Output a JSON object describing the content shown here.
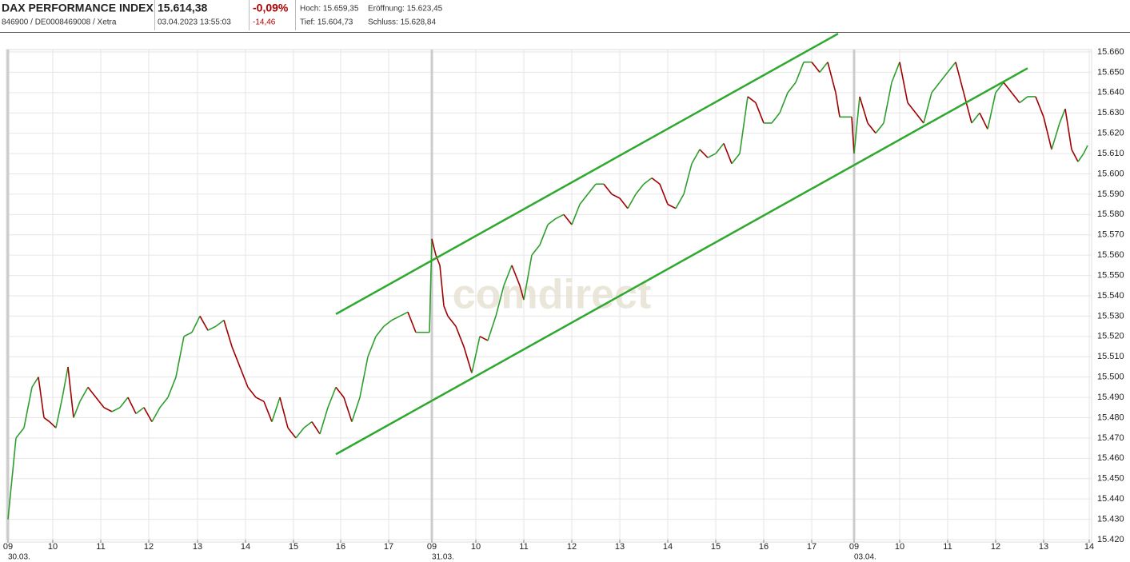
{
  "header": {
    "title": "DAX PERFORMANCE INDEX",
    "subtitle": "846900 / DE0008469008 / Xetra",
    "price": "15.614,38",
    "timestamp": "03.04.2023 13:55:03",
    "change_pct": "-0,09%",
    "change_abs": "-14,46",
    "high": "Hoch: 15.659,35",
    "open": "Eröffnung: 15.623,45",
    "low": "Tief: 15.604,73",
    "close": "Schluss: 15.628,84"
  },
  "chart_data": {
    "type": "line",
    "watermark": "comdirect",
    "up_color": "#2e9e2e",
    "down_color": "#a00000",
    "trend_color": "#2ea82e",
    "grid": true,
    "xlim": [
      -2,
      1355
    ],
    "ylim": [
      15420,
      15660
    ],
    "xticks": [
      {
        "value": 0,
        "label": "09"
      },
      {
        "value": 56,
        "label": "10"
      },
      {
        "value": 116,
        "label": "11"
      },
      {
        "value": 176,
        "label": "12"
      },
      {
        "value": 237,
        "label": "13"
      },
      {
        "value": 297,
        "label": "14"
      },
      {
        "value": 357,
        "label": "15"
      },
      {
        "value": 416,
        "label": "16"
      },
      {
        "value": 476,
        "label": "17"
      },
      {
        "value": 530,
        "label": "09"
      },
      {
        "value": 585,
        "label": "10"
      },
      {
        "value": 645,
        "label": "11"
      },
      {
        "value": 705,
        "label": "12"
      },
      {
        "value": 765,
        "label": "13"
      },
      {
        "value": 825,
        "label": "14"
      },
      {
        "value": 885,
        "label": "15"
      },
      {
        "value": 945,
        "label": "16"
      },
      {
        "value": 1005,
        "label": "17"
      },
      {
        "value": 1058,
        "label": "09"
      },
      {
        "value": 1115,
        "label": "10"
      },
      {
        "value": 1175,
        "label": "11"
      },
      {
        "value": 1235,
        "label": "12"
      },
      {
        "value": 1295,
        "label": "13"
      },
      {
        "value": 1352,
        "label": "14"
      }
    ],
    "day_labels": [
      {
        "value": 0,
        "label": "30.03."
      },
      {
        "value": 530,
        "label": "31.03."
      },
      {
        "value": 1058,
        "label": "03.04."
      }
    ],
    "yticks": [
      {
        "value": 15420,
        "label": "15.420"
      },
      {
        "value": 15430,
        "label": "15.430"
      },
      {
        "value": 15440,
        "label": "15.440"
      },
      {
        "value": 15450,
        "label": "15.450"
      },
      {
        "value": 15460,
        "label": "15.460"
      },
      {
        "value": 15470,
        "label": "15.470"
      },
      {
        "value": 15480,
        "label": "15.480"
      },
      {
        "value": 15490,
        "label": "15.490"
      },
      {
        "value": 15500,
        "label": "15.500"
      },
      {
        "value": 15510,
        "label": "15.510"
      },
      {
        "value": 15520,
        "label": "15.520"
      },
      {
        "value": 15530,
        "label": "15.530"
      },
      {
        "value": 15540,
        "label": "15.540"
      },
      {
        "value": 15550,
        "label": "15.550"
      },
      {
        "value": 15560,
        "label": "15.560"
      },
      {
        "value": 15570,
        "label": "15.570"
      },
      {
        "value": 15580,
        "label": "15.580"
      },
      {
        "value": 15590,
        "label": "15.590"
      },
      {
        "value": 15600,
        "label": "15.600"
      },
      {
        "value": 15610,
        "label": "15.610"
      },
      {
        "value": 15620,
        "label": "15.620"
      },
      {
        "value": 15630,
        "label": "15.630"
      },
      {
        "value": 15640,
        "label": "15.640"
      },
      {
        "value": 15650,
        "label": "15.650"
      },
      {
        "value": 15660,
        "label": "15.660"
      }
    ],
    "x": [
      0,
      5,
      10,
      20,
      30,
      38,
      45,
      52,
      60,
      68,
      75,
      82,
      90,
      100,
      110,
      120,
      130,
      140,
      150,
      160,
      170,
      180,
      190,
      200,
      210,
      220,
      230,
      240,
      250,
      260,
      270,
      280,
      290,
      300,
      310,
      320,
      330,
      340,
      350,
      360,
      370,
      380,
      390,
      400,
      410,
      420,
      430,
      440,
      450,
      460,
      470,
      480,
      490,
      500,
      510,
      527,
      530,
      535,
      540,
      545,
      550,
      560,
      570,
      580,
      590,
      600,
      610,
      620,
      630,
      640,
      645,
      655,
      665,
      675,
      685,
      695,
      705,
      715,
      725,
      735,
      745,
      755,
      765,
      775,
      785,
      795,
      805,
      815,
      825,
      835,
      845,
      855,
      865,
      875,
      885,
      895,
      905,
      915,
      925,
      935,
      945,
      955,
      965,
      975,
      985,
      995,
      1005,
      1015,
      1025,
      1035,
      1040,
      1055,
      1058,
      1065,
      1075,
      1085,
      1095,
      1105,
      1115,
      1125,
      1135,
      1145,
      1155,
      1165,
      1175,
      1185,
      1195,
      1205,
      1215,
      1225,
      1235,
      1245,
      1255,
      1265,
      1275,
      1285,
      1295,
      1305,
      1315,
      1322,
      1330,
      1338,
      1345,
      1350
    ],
    "series": [
      {
        "name": "DAX",
        "values": [
          15430,
          15450,
          15470,
          15475,
          15495,
          15500,
          15480,
          15478,
          15475,
          15490,
          15505,
          15480,
          15488,
          15495,
          15490,
          15485,
          15483,
          15485,
          15490,
          15482,
          15485,
          15478,
          15485,
          15490,
          15500,
          15520,
          15522,
          15530,
          15523,
          15525,
          15528,
          15515,
          15505,
          15495,
          15490,
          15488,
          15478,
          15490,
          15475,
          15470,
          15475,
          15478,
          15472,
          15485,
          15495,
          15490,
          15478,
          15490,
          15510,
          15520,
          15525,
          15528,
          15530,
          15532,
          15522,
          15522,
          15568,
          15560,
          15555,
          15535,
          15530,
          15525,
          15515,
          15502,
          15520,
          15518,
          15530,
          15545,
          15555,
          15545,
          15538,
          15560,
          15565,
          15575,
          15578,
          15580,
          15575,
          15585,
          15590,
          15595,
          15595,
          15590,
          15588,
          15583,
          15590,
          15595,
          15598,
          15595,
          15585,
          15583,
          15590,
          15605,
          15612,
          15608,
          15610,
          15615,
          15605,
          15610,
          15638,
          15635,
          15625,
          15625,
          15630,
          15640,
          15645,
          15655,
          15655,
          15650,
          15655,
          15640,
          15628,
          15628,
          15610,
          15638,
          15625,
          15620,
          15625,
          15645,
          15655,
          15635,
          15630,
          15625,
          15640,
          15645,
          15650,
          15655,
          15640,
          15625,
          15630,
          15622,
          15640,
          15645,
          15640,
          15635,
          15638,
          15638,
          15628,
          15612,
          15625,
          15632,
          15612,
          15606,
          15610,
          15614
        ]
      }
    ],
    "trendlines": [
      {
        "x": [
          410,
          1038
        ],
        "values": [
          15531,
          15669
        ]
      },
      {
        "x": [
          410,
          1275
        ],
        "values": [
          15462,
          15652
        ]
      }
    ]
  }
}
